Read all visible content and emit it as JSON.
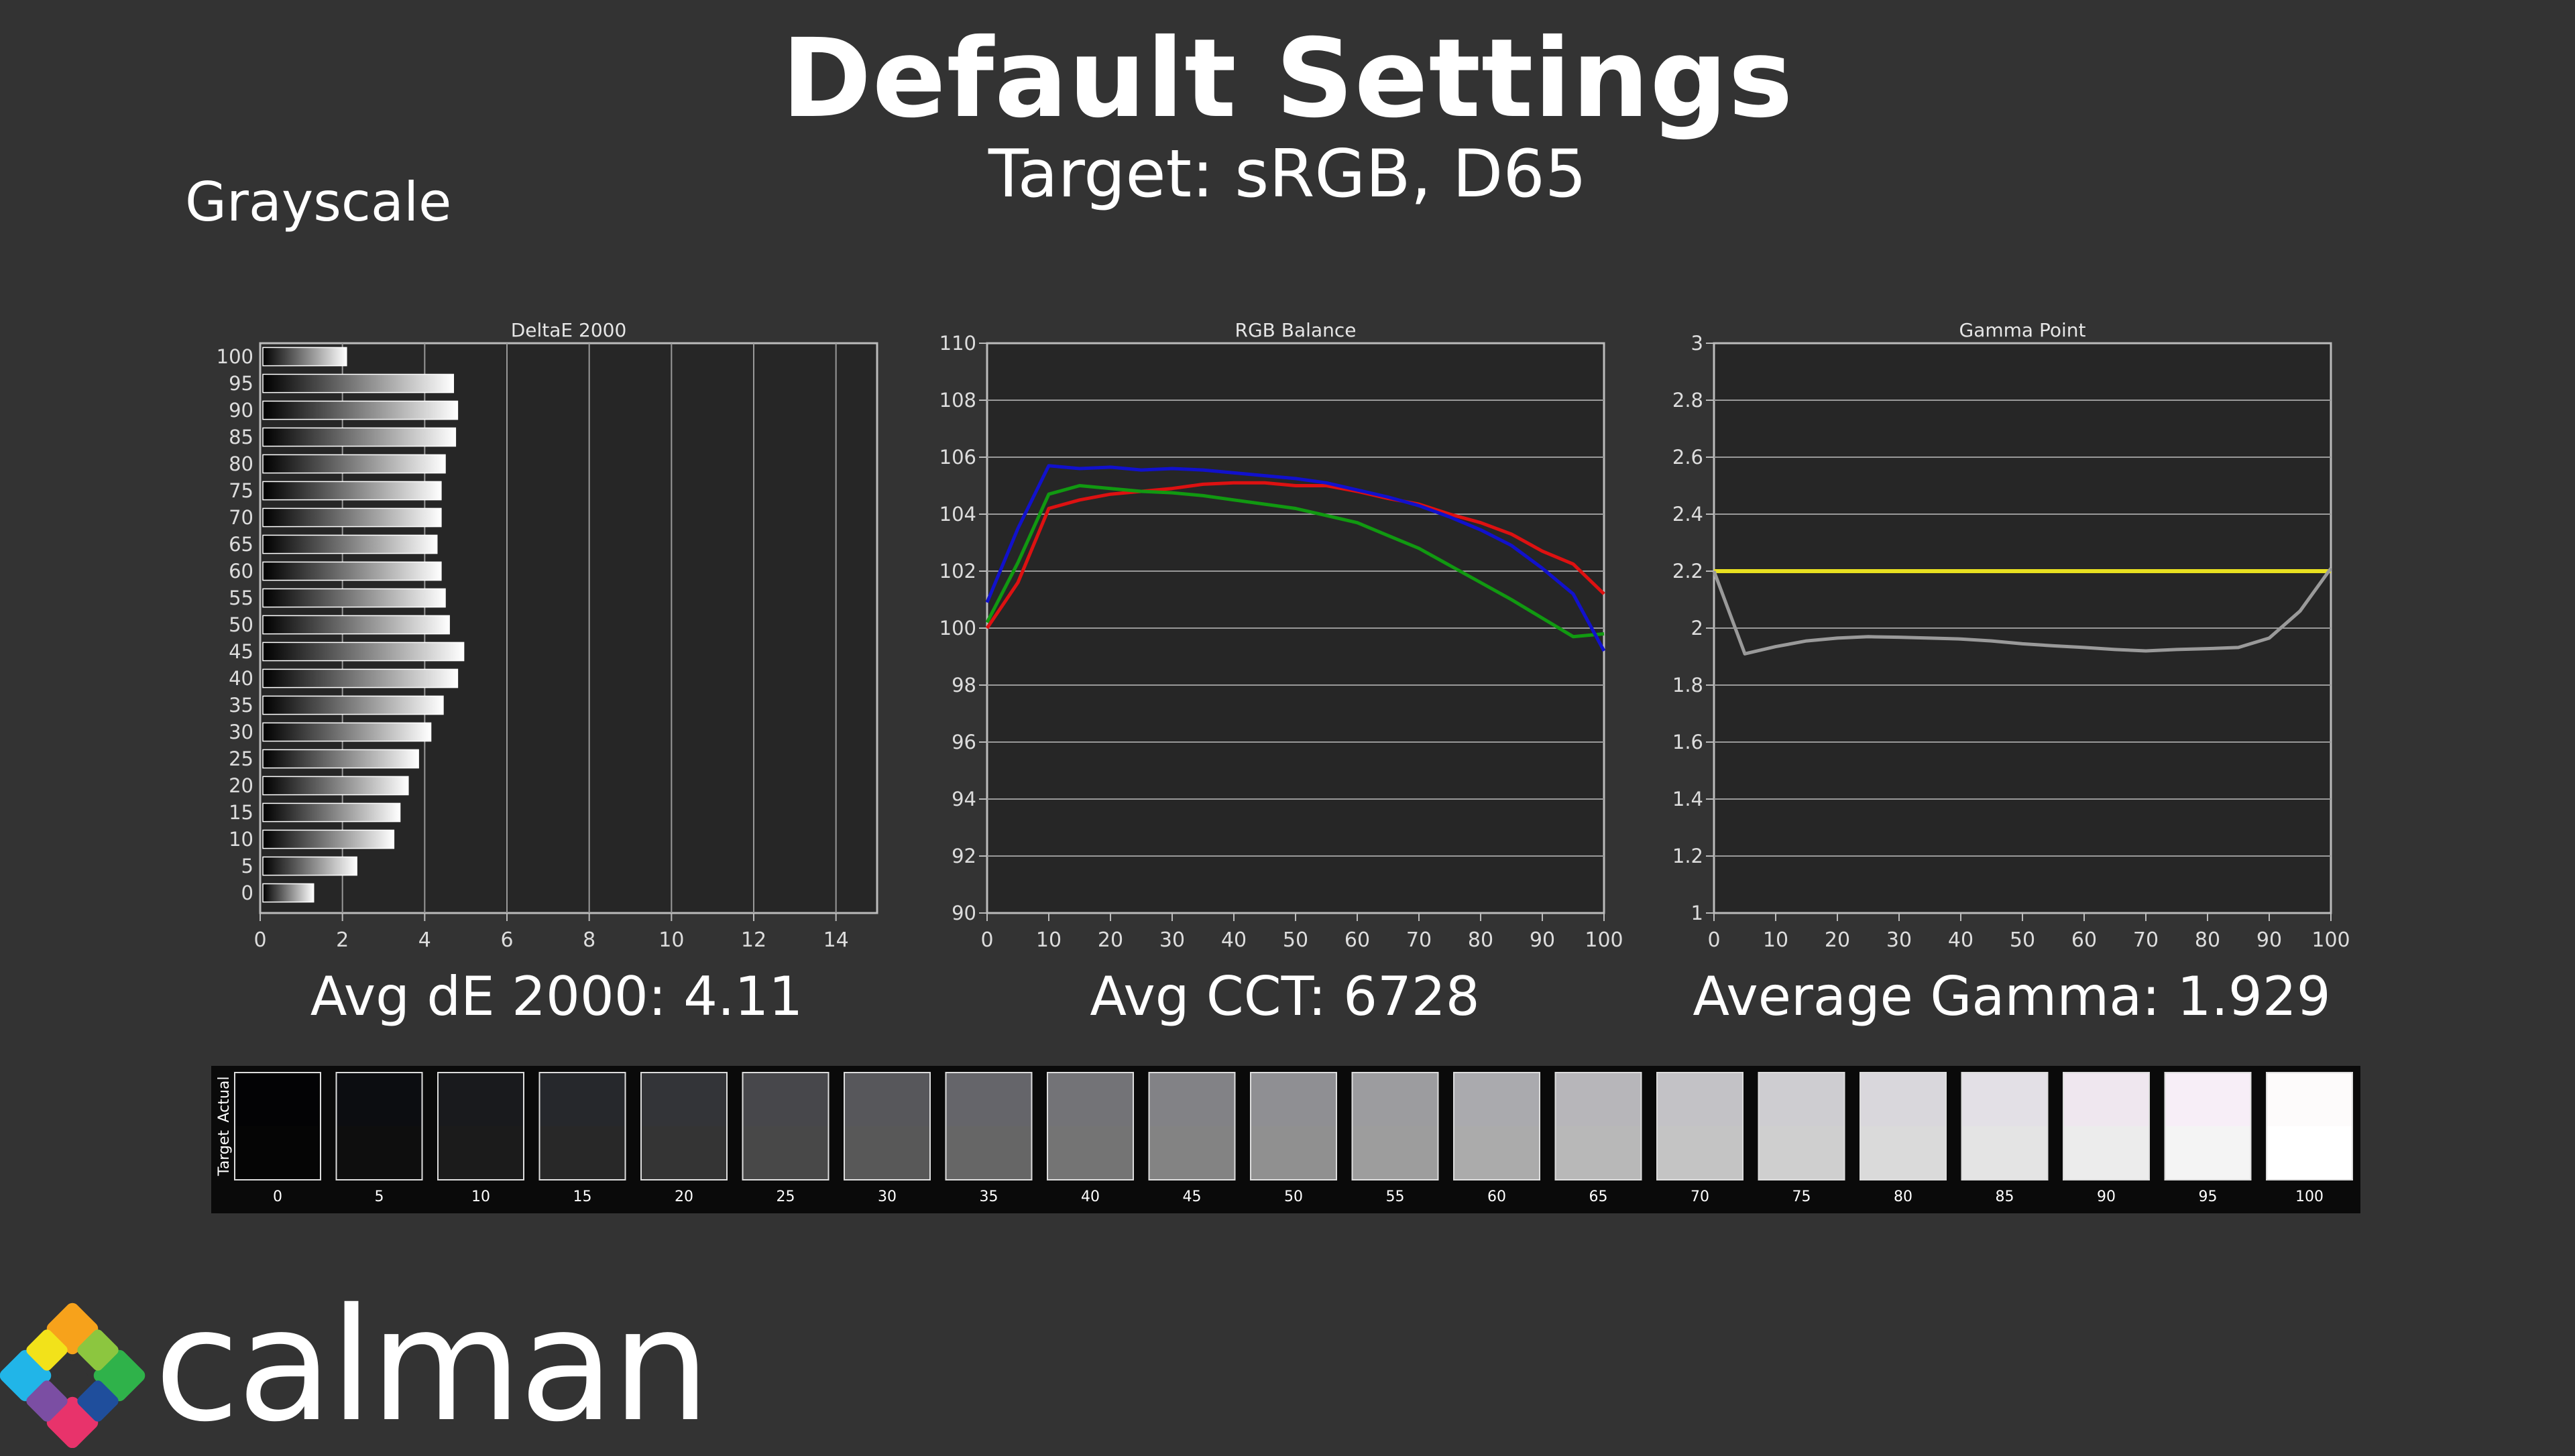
{
  "header": {
    "title": "Default Settings",
    "subtitle": "Target: sRGB, D65"
  },
  "section": {
    "label": "Grayscale"
  },
  "stats": {
    "delta_e": "Avg dE 2000: 4.11",
    "cct": "Avg CCT: 6728",
    "gamma": "Average Gamma: 1.929"
  },
  "swatches": {
    "actual_label": "Actual",
    "target_label": "Target",
    "levels": [
      "0",
      "5",
      "10",
      "15",
      "20",
      "25",
      "30",
      "35",
      "40",
      "45",
      "50",
      "55",
      "60",
      "65",
      "70",
      "75",
      "80",
      "85",
      "90",
      "95",
      "100"
    ],
    "actual_colors": [
      "#030305",
      "#0c0d11",
      "#191a1d",
      "#26282c",
      "#333438",
      "#47474b",
      "#57575b",
      "#65656a",
      "#737377",
      "#828286",
      "#8f8f93",
      "#9c9c9f",
      "#aaaaae",
      "#b7b6ba",
      "#c3c2c6",
      "#cecdd1",
      "#d9d7dc",
      "#e3e0e6",
      "#efe7ef",
      "#f7eef7",
      "#fdfbfb"
    ],
    "target_colors": [
      "#050505",
      "#0e0e0e",
      "#1b1b1b",
      "#282828",
      "#343434",
      "#484848",
      "#585858",
      "#666666",
      "#747474",
      "#838383",
      "#909090",
      "#9d9d9d",
      "#ababab",
      "#b8b8b8",
      "#c4c4c4",
      "#cfcfcf",
      "#dadada",
      "#e4e4e4",
      "#ececec",
      "#f4f4f4",
      "#ffffff"
    ]
  },
  "logo": {
    "text": "calman"
  },
  "chart_data": [
    {
      "type": "bar",
      "orientation": "horizontal",
      "title": "DeltaE 2000",
      "categories": [
        "100",
        "95",
        "90",
        "85",
        "80",
        "75",
        "70",
        "65",
        "60",
        "55",
        "50",
        "45",
        "40",
        "35",
        "30",
        "25",
        "20",
        "15",
        "10",
        "5",
        "0"
      ],
      "values": [
        2.1,
        4.7,
        4.8,
        4.75,
        4.5,
        4.4,
        4.4,
        4.3,
        4.4,
        4.5,
        4.6,
        4.95,
        4.8,
        4.45,
        4.15,
        3.85,
        3.6,
        3.4,
        3.25,
        2.35,
        1.3
      ],
      "xlim": [
        0,
        15
      ],
      "xticks": [
        0,
        2,
        4,
        6,
        8,
        10,
        12,
        14
      ],
      "grid": true
    },
    {
      "type": "line",
      "title": "RGB Balance",
      "x": [
        0,
        5,
        10,
        15,
        20,
        25,
        30,
        35,
        40,
        45,
        50,
        55,
        60,
        65,
        70,
        75,
        80,
        85,
        90,
        95,
        100
      ],
      "series": [
        {
          "color": "#dd1111",
          "values": [
            100.0,
            101.6,
            104.2,
            104.5,
            104.7,
            104.8,
            104.9,
            105.05,
            105.1,
            105.1,
            105.0,
            105.0,
            104.8,
            104.55,
            104.35,
            104.0,
            103.7,
            103.3,
            102.7,
            102.25,
            101.2
          ]
        },
        {
          "color": "#119911",
          "values": [
            100.2,
            102.3,
            104.7,
            105.0,
            104.9,
            104.8,
            104.75,
            104.65,
            104.5,
            104.35,
            104.2,
            103.95,
            103.7,
            103.25,
            102.8,
            102.2,
            101.6,
            101.0,
            100.35,
            99.7,
            99.8
          ]
        },
        {
          "color": "#1111cc",
          "values": [
            100.9,
            103.5,
            105.7,
            105.6,
            105.65,
            105.55,
            105.6,
            105.55,
            105.45,
            105.35,
            105.25,
            105.1,
            104.85,
            104.6,
            104.3,
            103.9,
            103.45,
            102.9,
            102.1,
            101.2,
            99.2
          ]
        }
      ],
      "xlim": [
        0,
        100
      ],
      "ylim": [
        90,
        110
      ],
      "xticks": [
        0,
        10,
        20,
        30,
        40,
        50,
        60,
        70,
        80,
        90,
        100
      ],
      "yticks": [
        90,
        92,
        94,
        96,
        98,
        100,
        102,
        104,
        106,
        108,
        110
      ],
      "grid": true
    },
    {
      "type": "line",
      "title": "Gamma Point",
      "x": [
        0,
        5,
        10,
        15,
        20,
        25,
        30,
        35,
        40,
        45,
        50,
        55,
        60,
        65,
        70,
        75,
        80,
        85,
        90,
        95,
        100
      ],
      "series": [
        {
          "color": "#e8e020",
          "values": [
            2.2,
            2.2,
            2.2,
            2.2,
            2.2,
            2.2,
            2.2,
            2.2,
            2.2,
            2.2,
            2.2,
            2.2,
            2.2,
            2.2,
            2.2,
            2.2,
            2.2,
            2.2,
            2.2,
            2.2,
            2.2
          ]
        },
        {
          "color": "#9a9a9a",
          "values": [
            2.2,
            1.91,
            1.935,
            1.955,
            1.965,
            1.97,
            1.968,
            1.965,
            1.962,
            1.955,
            1.945,
            1.938,
            1.932,
            1.925,
            1.92,
            1.925,
            1.928,
            1.932,
            1.965,
            2.06,
            2.21
          ]
        }
      ],
      "xlim": [
        0,
        100
      ],
      "ylim": [
        1,
        3
      ],
      "xticks": [
        0,
        10,
        20,
        30,
        40,
        50,
        60,
        70,
        80,
        90,
        100
      ],
      "yticks": [
        1,
        1.2,
        1.4,
        1.6,
        1.8,
        2,
        2.2,
        2.4,
        2.6,
        2.8,
        3
      ],
      "grid": true
    }
  ]
}
